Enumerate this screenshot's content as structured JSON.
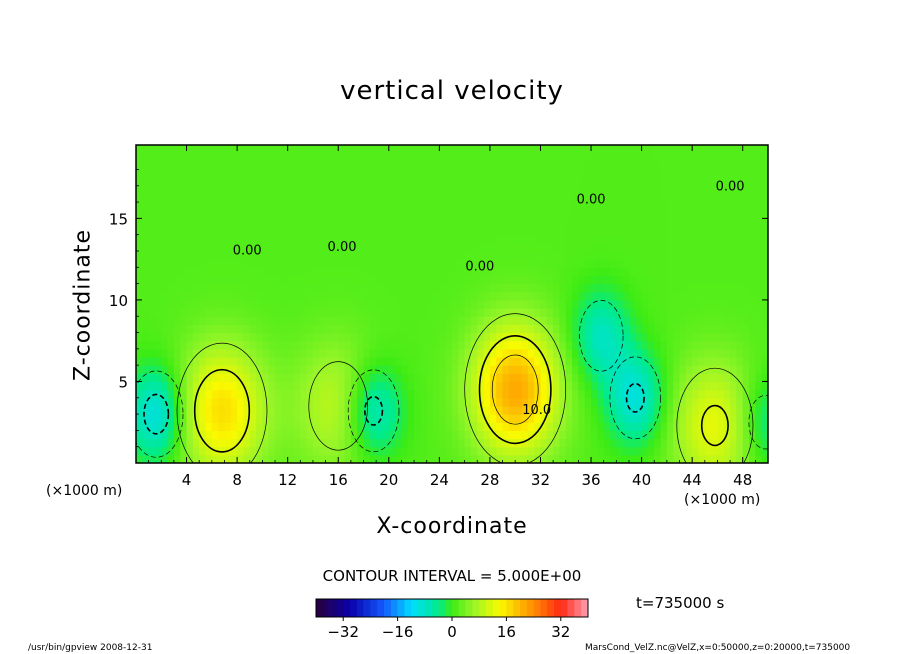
{
  "title": "vertical velocity",
  "footer": {
    "left": "/usr/bin/gpview   2008-12-31",
    "right": "MarsCond_VelZ.nc@VelZ,x=0:50000,z=0:20000,t=735000"
  },
  "chart_data": {
    "type": "heatmap",
    "title": "vertical velocity",
    "xlabel": "X-coordinate",
    "ylabel": "Z-coordinate",
    "x_unit_left": "(×1000 m)",
    "x_unit_right": "(×1000 m)",
    "xlim": [
      0,
      50
    ],
    "ylim": [
      0,
      19.5
    ],
    "x_ticks": [
      4,
      8,
      12,
      16,
      20,
      24,
      28,
      32,
      36,
      40,
      44,
      48
    ],
    "y_ticks": [
      5,
      10,
      15
    ],
    "contour_interval_text": "CONTOUR INTERVAL = 5.000E+00",
    "time_text": "t=735000  s",
    "contour_labels": [
      {
        "text": "0.00",
        "x": 8.8,
        "z": 12.8
      },
      {
        "text": "0.00",
        "x": 16.3,
        "z": 13.0
      },
      {
        "text": "0.00",
        "x": 27.2,
        "z": 11.8
      },
      {
        "text": "0.00",
        "x": 36.0,
        "z": 15.9
      },
      {
        "text": "0.00",
        "x": 47.0,
        "z": 16.7
      },
      {
        "text": "10.0",
        "x": 31.7,
        "z": 3.0
      }
    ],
    "extrema": [
      {
        "kind": "updraft",
        "x": 6.8,
        "z": 3.2,
        "value": 15
      },
      {
        "kind": "updraft",
        "x": 16.0,
        "z": 3.5,
        "value": 8
      },
      {
        "kind": "updraft",
        "x": 30.0,
        "z": 4.5,
        "value": 20
      },
      {
        "kind": "updraft",
        "x": 45.8,
        "z": 2.3,
        "value": 11
      },
      {
        "kind": "downdraft",
        "x": 1.6,
        "z": 3.0,
        "value": -12
      },
      {
        "kind": "downdraft",
        "x": 18.8,
        "z": 3.2,
        "value": -11
      },
      {
        "kind": "downdraft",
        "x": 36.8,
        "z": 7.8,
        "value": -9
      },
      {
        "kind": "downdraft",
        "x": 39.5,
        "z": 4.0,
        "value": -11
      },
      {
        "kind": "downdraft",
        "x": 49.8,
        "z": 2.5,
        "value": -7
      }
    ],
    "colorbar": {
      "range": [
        -40,
        40
      ],
      "ticks": [
        -32,
        -16,
        0,
        16,
        32
      ],
      "tick_labels": [
        "−32",
        "−16",
        "0",
        "16",
        "32"
      ]
    }
  }
}
